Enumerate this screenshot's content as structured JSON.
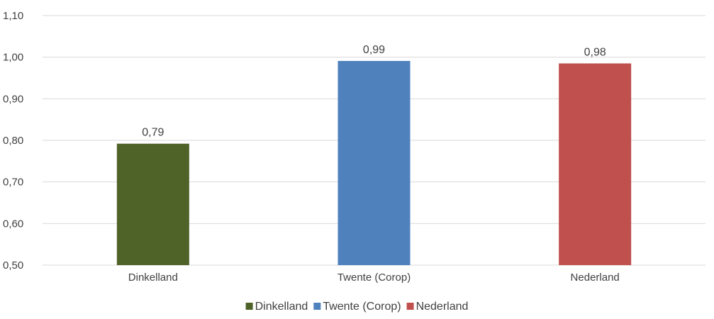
{
  "chart_data": {
    "type": "bar",
    "categories": [
      "Dinkelland",
      "Twente (Corop)",
      "Nederland"
    ],
    "values": [
      0.792,
      0.991,
      0.985
    ],
    "data_labels": [
      "0,79",
      "0,99",
      "0,98"
    ],
    "colors": [
      "#4f6228",
      "#4f81bd",
      "#c0504d"
    ],
    "ylim": [
      0.5,
      1.1
    ],
    "yticks": [
      0.5,
      0.6,
      0.7,
      0.8,
      0.9,
      1.0,
      1.1
    ],
    "ytick_labels": [
      "0,50",
      "0,60",
      "0,70",
      "0,80",
      "0,90",
      "1,00",
      "1,10"
    ],
    "grid": true,
    "legend_position": "bottom",
    "legend": [
      "Dinkelland",
      "Twente (Corop)",
      "Nederland"
    ],
    "title": "",
    "xlabel": "",
    "ylabel": ""
  }
}
